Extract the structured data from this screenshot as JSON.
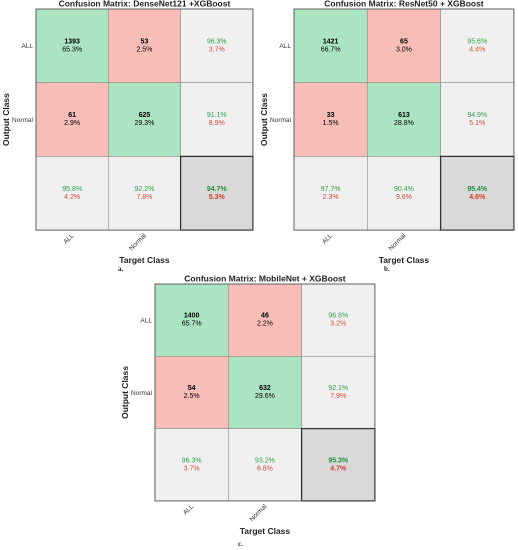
{
  "colors": {
    "correct": "#abe4c1",
    "wrong": "#f7bdb6",
    "summary": "#f0f0f0",
    "overall": "#d9d9d9",
    "green_text": "#2e9e4a",
    "red_text": "#d64a3a"
  },
  "chart_data": [
    {
      "type": "table",
      "panel": "a.",
      "title": "Confusion Matrix: DenseNet121 +XGBoost",
      "xlabel": "Target Class",
      "ylabel": "Output Class",
      "classes": [
        "ALL",
        "Normal"
      ],
      "cells": [
        [
          {
            "count": "1393",
            "pct": "65.3%"
          },
          {
            "count": "53",
            "pct": "2.5%"
          }
        ],
        [
          {
            "count": "61",
            "pct": "2.9%"
          },
          {
            "count": "625",
            "pct": "29.3%"
          }
        ]
      ],
      "row_summary": [
        [
          "96.3%",
          "3.7%"
        ],
        [
          "91.1%",
          "8.9%"
        ]
      ],
      "col_summary": [
        [
          "95.8%",
          "4.2%"
        ],
        [
          "92.2%",
          "7.8%"
        ]
      ],
      "overall": [
        "94.7%",
        "5.3%"
      ]
    },
    {
      "type": "table",
      "panel": "b.",
      "title": "Confusion Matrix: ResNet50 + XGBoost",
      "xlabel": "Target Class",
      "ylabel": "Output Class",
      "classes": [
        "ALL",
        "Normal"
      ],
      "cells": [
        [
          {
            "count": "1421",
            "pct": "66.7%"
          },
          {
            "count": "65",
            "pct": "3.0%"
          }
        ],
        [
          {
            "count": "33",
            "pct": "1.5%"
          },
          {
            "count": "613",
            "pct": "28.8%"
          }
        ]
      ],
      "row_summary": [
        [
          "95.6%",
          "4.4%"
        ],
        [
          "94.9%",
          "5.1%"
        ]
      ],
      "col_summary": [
        [
          "97.7%",
          "2.3%"
        ],
        [
          "90.4%",
          "9.6%"
        ]
      ],
      "overall": [
        "95.4%",
        "4.6%"
      ]
    },
    {
      "type": "table",
      "panel": "c.",
      "title": "Confusion Matrix: MobileNet + XGBoost",
      "xlabel": "Target Class",
      "ylabel": "Output Class",
      "classes": [
        "ALL",
        "Normal"
      ],
      "cells": [
        [
          {
            "count": "1400",
            "pct": "65.7%"
          },
          {
            "count": "46",
            "pct": "2.2%"
          }
        ],
        [
          {
            "count": "54",
            "pct": "2.5%"
          },
          {
            "count": "632",
            "pct": "29.6%"
          }
        ]
      ],
      "row_summary": [
        [
          "96.8%",
          "3.2%"
        ],
        [
          "92.1%",
          "7.9%"
        ]
      ],
      "col_summary": [
        [
          "96.3%",
          "3.7%"
        ],
        [
          "93.2%",
          "6.8%"
        ]
      ],
      "overall": [
        "95.3%",
        "4.7%"
      ]
    }
  ]
}
